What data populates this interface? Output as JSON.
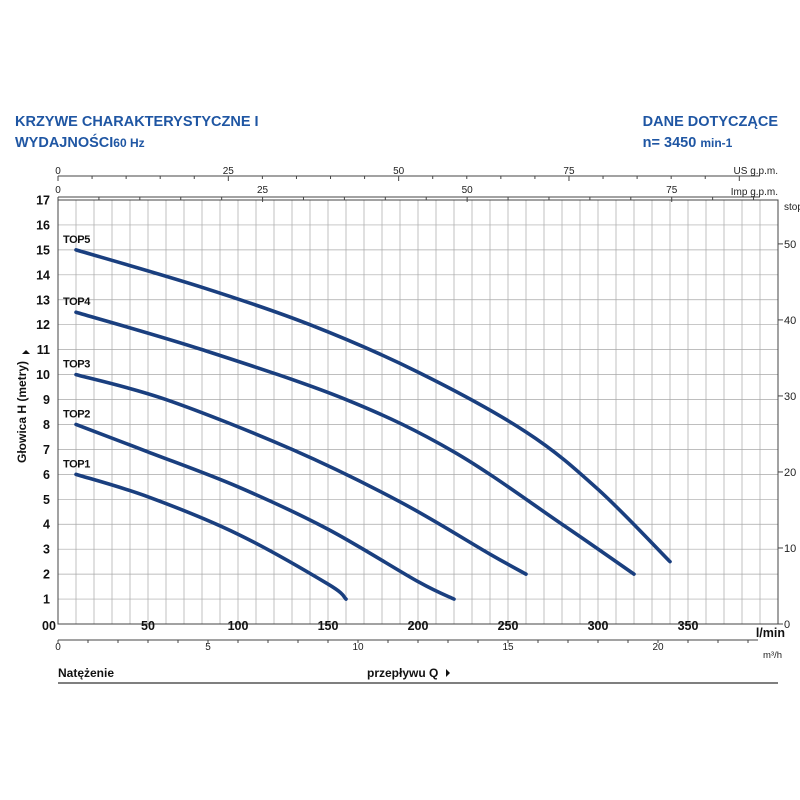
{
  "header": {
    "title_line1": "KRZYWE CHARAKTERYSTYCZNE I",
    "title_line2_main": "WYDAJNOŚCI",
    "title_line2_freq": "60 Hz",
    "info_line1": "DANE DOTYCZĄCE",
    "info_line2_main": "n= 3450",
    "info_line2_unit": "min-1"
  },
  "footer": {
    "left_label": "Natężenie",
    "center_label": "przepływu Q"
  },
  "chart_data": {
    "type": "line",
    "ylabel": "Głowica H (metry)",
    "ylim": [
      0,
      17
    ],
    "yticks": [
      0,
      1,
      2,
      3,
      4,
      5,
      6,
      7,
      8,
      9,
      10,
      11,
      12,
      13,
      14,
      15,
      16,
      17
    ],
    "xlim": [
      0,
      400
    ],
    "xlabel": "l/min",
    "xticks": [
      0,
      50,
      100,
      150,
      200,
      250,
      300,
      350
    ],
    "xtick_labels": [
      "00",
      "50",
      "100",
      "150",
      "200",
      "250",
      "300",
      "350"
    ],
    "grid": true,
    "secondary_axes": {
      "us_gpm": {
        "label": "US g.p.m.",
        "ticks": [
          0,
          25,
          50,
          75
        ],
        "factor": 3.785
      },
      "imp_gpm": {
        "label": "Imp g.p.m.",
        "ticks": [
          0,
          25,
          50,
          75
        ],
        "factor": 4.546
      },
      "m3h": {
        "label": "m³/h",
        "ticks": [
          0,
          5,
          10,
          15,
          20
        ],
        "factor": 16.667
      },
      "feet": {
        "label": "stop",
        "ticks": [
          0,
          10,
          20,
          30,
          40,
          50
        ],
        "factor": 0.3048
      }
    },
    "series": [
      {
        "name": "TOP1",
        "x": [
          10,
          50,
          100,
          150,
          160
        ],
        "y": [
          6,
          5.1,
          3.6,
          1.6,
          1.0
        ]
      },
      {
        "name": "TOP2",
        "x": [
          10,
          50,
          100,
          150,
          200,
          220
        ],
        "y": [
          8,
          6.9,
          5.5,
          3.8,
          1.7,
          1.0
        ]
      },
      {
        "name": "TOP3",
        "x": [
          10,
          60,
          130,
          190,
          240,
          260
        ],
        "y": [
          10,
          9,
          7,
          4.9,
          2.8,
          2.0
        ]
      },
      {
        "name": "TOP4",
        "x": [
          10,
          80,
          160,
          220,
          280,
          320
        ],
        "y": [
          12.5,
          11,
          9,
          6.9,
          4.0,
          2.0
        ]
      },
      {
        "name": "TOP5",
        "x": [
          10,
          80,
          140,
          200,
          260,
          300,
          340
        ],
        "y": [
          15,
          13.5,
          12,
          10.1,
          7.7,
          5.4,
          2.5
        ]
      }
    ],
    "colors": {
      "curve": "#1a3f7f",
      "grid": "#a8a8a8",
      "header": "#1f56a3"
    }
  }
}
